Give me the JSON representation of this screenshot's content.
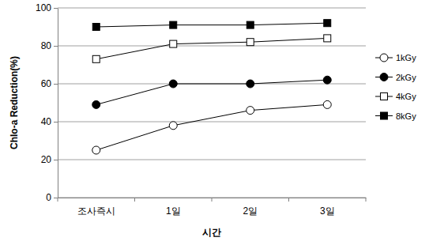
{
  "chart_data": {
    "type": "line",
    "x_label": "시간",
    "y_label": "Chlo-a Reduction(%)",
    "categories": [
      "조사즉시",
      "1일",
      "2일",
      "3일"
    ],
    "series": [
      {
        "name": "1kGy",
        "color": "#000000",
        "marker": "circle-open",
        "line_style": "solid",
        "values": [
          25,
          38,
          46,
          49
        ]
      },
      {
        "name": "2kGy",
        "color": "#000000",
        "marker": "circle",
        "line_style": "solid",
        "values": [
          49,
          60,
          60,
          62
        ]
      },
      {
        "name": "4kGy",
        "color": "#000000",
        "marker": "square-open",
        "line_style": "solid",
        "values": [
          73,
          81,
          82,
          84
        ]
      },
      {
        "name": "8kGy",
        "color": "#000000",
        "marker": "square",
        "line_style": "solid",
        "values": [
          90,
          91,
          91,
          92
        ]
      }
    ],
    "ylim": [
      0,
      100
    ],
    "yticks": [
      0,
      20,
      40,
      60,
      80,
      100
    ],
    "grid": true,
    "legend": "right"
  }
}
